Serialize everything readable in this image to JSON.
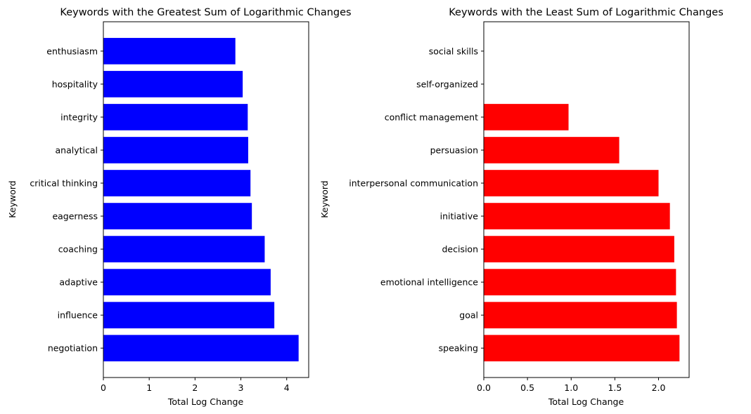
{
  "chart_data": [
    {
      "type": "bar",
      "orientation": "horizontal",
      "title": "Keywords with the Greatest Sum of Logarithmic Changes",
      "xlabel": "Total Log Change",
      "ylabel": "Keyword",
      "color": "#0000ff",
      "xlim": [
        0,
        4.48
      ],
      "xticks": [
        0,
        1,
        2,
        3,
        4
      ],
      "xtick_labels": [
        "0",
        "1",
        "2",
        "3",
        "4"
      ],
      "grid": false,
      "categories": [
        "negotiation",
        "influence",
        "adaptive",
        "coaching",
        "eagerness",
        "critical thinking",
        "analytical",
        "integrity",
        "hospitality",
        "enthusiasm"
      ],
      "values": [
        4.26,
        3.73,
        3.65,
        3.52,
        3.24,
        3.21,
        3.16,
        3.15,
        3.04,
        2.88
      ]
    },
    {
      "type": "bar",
      "orientation": "horizontal",
      "title": "Keywords with the Least Sum of Logarithmic Changes",
      "xlabel": "Total Log Change",
      "ylabel": "Keyword",
      "color": "#ff0000",
      "xlim": [
        0,
        2.35
      ],
      "xticks": [
        0,
        0.5,
        1.0,
        1.5,
        2.0
      ],
      "xtick_labels": [
        "0.0",
        "0.5",
        "1.0",
        "1.5",
        "2.0"
      ],
      "grid": false,
      "categories": [
        "speaking",
        "goal",
        "emotional intelligence",
        "decision",
        "initiative",
        "interpersonal communication",
        "persuasion",
        "conflict management",
        "self-organized",
        "social skills"
      ],
      "values": [
        2.24,
        2.21,
        2.2,
        2.18,
        2.13,
        2.0,
        1.55,
        0.97,
        0.0,
        0.0
      ]
    }
  ]
}
